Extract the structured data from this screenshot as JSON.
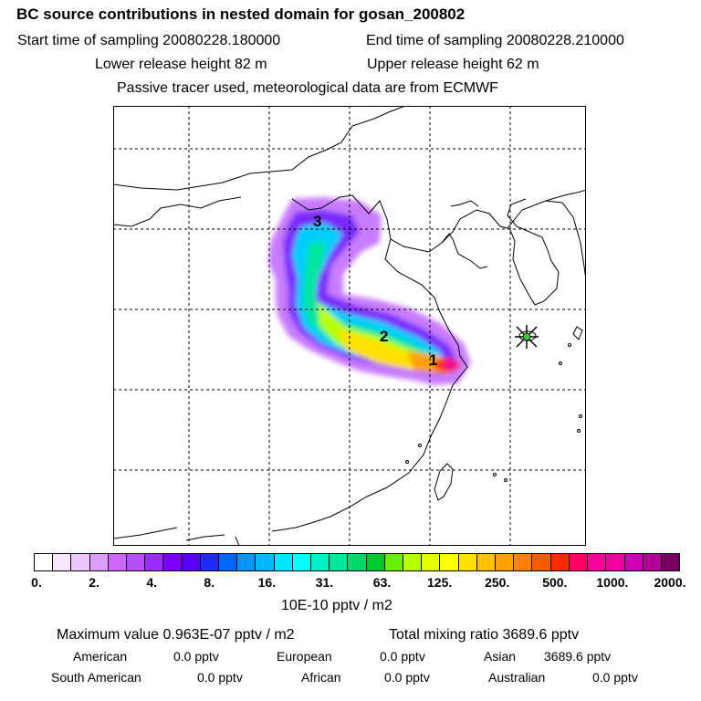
{
  "header": {
    "title": "BC  source contributions in nested domain for gosan_200802",
    "start": "Start time of sampling 20080228.180000",
    "end": "End time of sampling 20080228.210000",
    "lower": "Lower release height   82 m",
    "upper": "Upper release height   62 m",
    "note": "Passive tracer used, meteorological data are from ECMWF"
  },
  "map": {
    "source_labels": [
      "1",
      "2",
      "3"
    ],
    "receptor_icon": "star-marker-icon"
  },
  "colorbar": {
    "colors": [
      "#ffffff",
      "#f7e6ff",
      "#ecc6ff",
      "#df9cff",
      "#cc66ff",
      "#b84dff",
      "#9b2cff",
      "#7a00ff",
      "#5a00ff",
      "#1f2bff",
      "#0066ff",
      "#0096ff",
      "#00b7ff",
      "#00e6ff",
      "#00ffff",
      "#00f0c8",
      "#00e69b",
      "#00d96c",
      "#00c832",
      "#66f000",
      "#b6ff00",
      "#e5ff00",
      "#ffff00",
      "#ffe000",
      "#ffc000",
      "#ff9f00",
      "#ff7f00",
      "#ff5a00",
      "#ff2a00",
      "#ff0066",
      "#ff0099",
      "#f0009f",
      "#d100b3",
      "#b10099",
      "#7a0066"
    ],
    "tick_labels": [
      "0.",
      "2.",
      "4.",
      "8.",
      "16.",
      "31.",
      "63.",
      "125.",
      "250.",
      "500.",
      "1000.",
      "2000."
    ],
    "unit": "10E-10 pptv / m2"
  },
  "stats": {
    "max_value": "Maximum value  0.963E-07 pptv / m2",
    "total": "Total mixing ratio     3689.6 pptv",
    "american": "American",
    "american_val": "0.0 pptv",
    "european": "European",
    "european_val": "0.0 pptv",
    "asian": "Asian",
    "asian_val": "3689.6 pptv",
    "south_american": "South American",
    "south_american_val": "0.0 pptv",
    "african": "African",
    "african_val": "0.0 pptv",
    "australian": "Australian",
    "australian_val": "0.0 pptv"
  }
}
